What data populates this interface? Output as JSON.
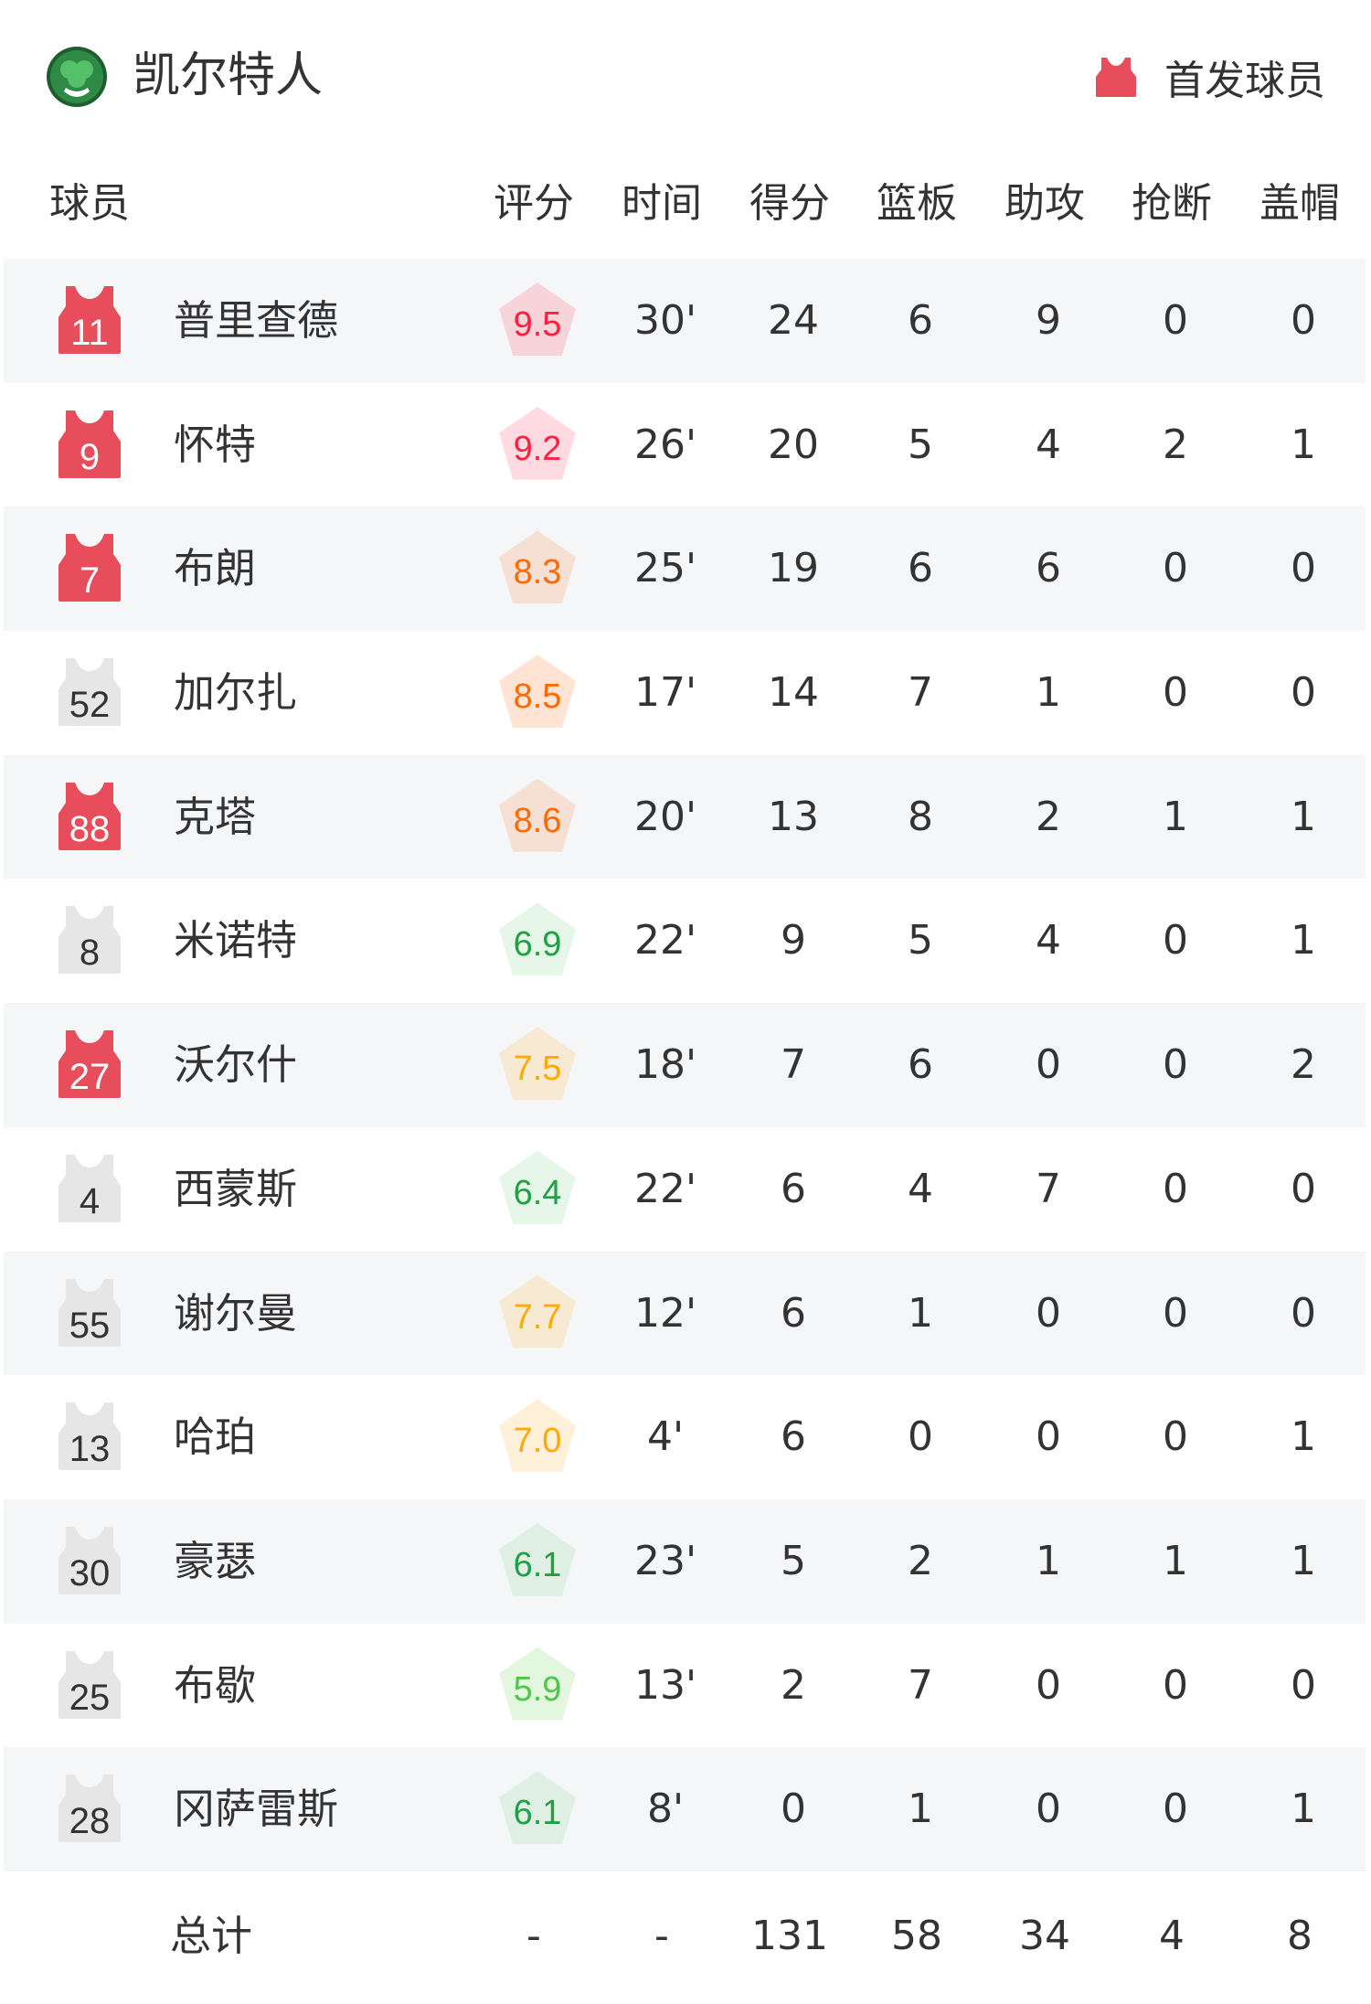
{
  "header": {
    "team_name": "凯尔特人",
    "logo_text": "CELTICS",
    "legend_label": "首发球员",
    "starter_color": "#e84d5b",
    "bench_color": "#e6e6e6"
  },
  "columns": [
    "球员",
    "评分",
    "时间",
    "得分",
    "篮板",
    "助攻",
    "抢断",
    "盖帽"
  ],
  "players": [
    {
      "number": "11",
      "name": "普里查德",
      "starter": true,
      "rating": "9.5",
      "rating_color": "#ff1f3f",
      "rating_bg": "#f7d3da",
      "min": "30'",
      "pts": "24",
      "reb": "6",
      "ast": "9",
      "stl": "0",
      "blk": "0"
    },
    {
      "number": "9",
      "name": "怀特",
      "starter": true,
      "rating": "9.2",
      "rating_color": "#ff1f3f",
      "rating_bg": "#ffdbe1",
      "min": "26'",
      "pts": "20",
      "reb": "5",
      "ast": "4",
      "stl": "2",
      "blk": "1"
    },
    {
      "number": "7",
      "name": "布朗",
      "starter": true,
      "rating": "8.3",
      "rating_color": "#ff6a00",
      "rating_bg": "#f6dfd3",
      "min": "25'",
      "pts": "19",
      "reb": "6",
      "ast": "6",
      "stl": "0",
      "blk": "0"
    },
    {
      "number": "52",
      "name": "加尔扎",
      "starter": false,
      "rating": "8.5",
      "rating_color": "#ff6a00",
      "rating_bg": "#ffe3d3",
      "min": "17'",
      "pts": "14",
      "reb": "7",
      "ast": "1",
      "stl": "0",
      "blk": "0"
    },
    {
      "number": "88",
      "name": "克塔",
      "starter": true,
      "rating": "8.6",
      "rating_color": "#ff6a00",
      "rating_bg": "#f6dfd3",
      "min": "20'",
      "pts": "13",
      "reb": "8",
      "ast": "2",
      "stl": "1",
      "blk": "1"
    },
    {
      "number": "8",
      "name": "米诺特",
      "starter": false,
      "rating": "6.9",
      "rating_color": "#22a045",
      "rating_bg": "#e6f6e8",
      "min": "22'",
      "pts": "9",
      "reb": "5",
      "ast": "4",
      "stl": "0",
      "blk": "1"
    },
    {
      "number": "27",
      "name": "沃尔什",
      "starter": true,
      "rating": "7.5",
      "rating_color": "#ffaa00",
      "rating_bg": "#f8ead2",
      "min": "18'",
      "pts": "7",
      "reb": "6",
      "ast": "0",
      "stl": "0",
      "blk": "2"
    },
    {
      "number": "4",
      "name": "西蒙斯",
      "starter": false,
      "rating": "6.4",
      "rating_color": "#22a045",
      "rating_bg": "#e6f6e8",
      "min": "22'",
      "pts": "6",
      "reb": "4",
      "ast": "7",
      "stl": "0",
      "blk": "0"
    },
    {
      "number": "55",
      "name": "谢尔曼",
      "starter": false,
      "rating": "7.7",
      "rating_color": "#ffaa00",
      "rating_bg": "#f8ead2",
      "min": "12'",
      "pts": "6",
      "reb": "1",
      "ast": "0",
      "stl": "0",
      "blk": "0"
    },
    {
      "number": "13",
      "name": "哈珀",
      "starter": false,
      "rating": "7.0",
      "rating_color": "#ffaa00",
      "rating_bg": "#fff1d9",
      "min": "4'",
      "pts": "6",
      "reb": "0",
      "ast": "0",
      "stl": "0",
      "blk": "1"
    },
    {
      "number": "30",
      "name": "豪瑟",
      "starter": false,
      "rating": "6.1",
      "rating_color": "#22a045",
      "rating_bg": "#e0efe4",
      "min": "23'",
      "pts": "5",
      "reb": "2",
      "ast": "1",
      "stl": "1",
      "blk": "1"
    },
    {
      "number": "25",
      "name": "布歇",
      "starter": false,
      "rating": "5.9",
      "rating_color": "#4cc94c",
      "rating_bg": "#e3f6de",
      "min": "13'",
      "pts": "2",
      "reb": "7",
      "ast": "0",
      "stl": "0",
      "blk": "0"
    },
    {
      "number": "28",
      "name": "冈萨雷斯",
      "starter": false,
      "rating": "6.1",
      "rating_color": "#22a045",
      "rating_bg": "#e0efe4",
      "min": "8'",
      "pts": "0",
      "reb": "1",
      "ast": "0",
      "stl": "0",
      "blk": "1"
    }
  ],
  "totals": {
    "label": "总计",
    "rating": "-",
    "min": "-",
    "pts": "131",
    "reb": "58",
    "ast": "34",
    "stl": "4",
    "blk": "8"
  }
}
